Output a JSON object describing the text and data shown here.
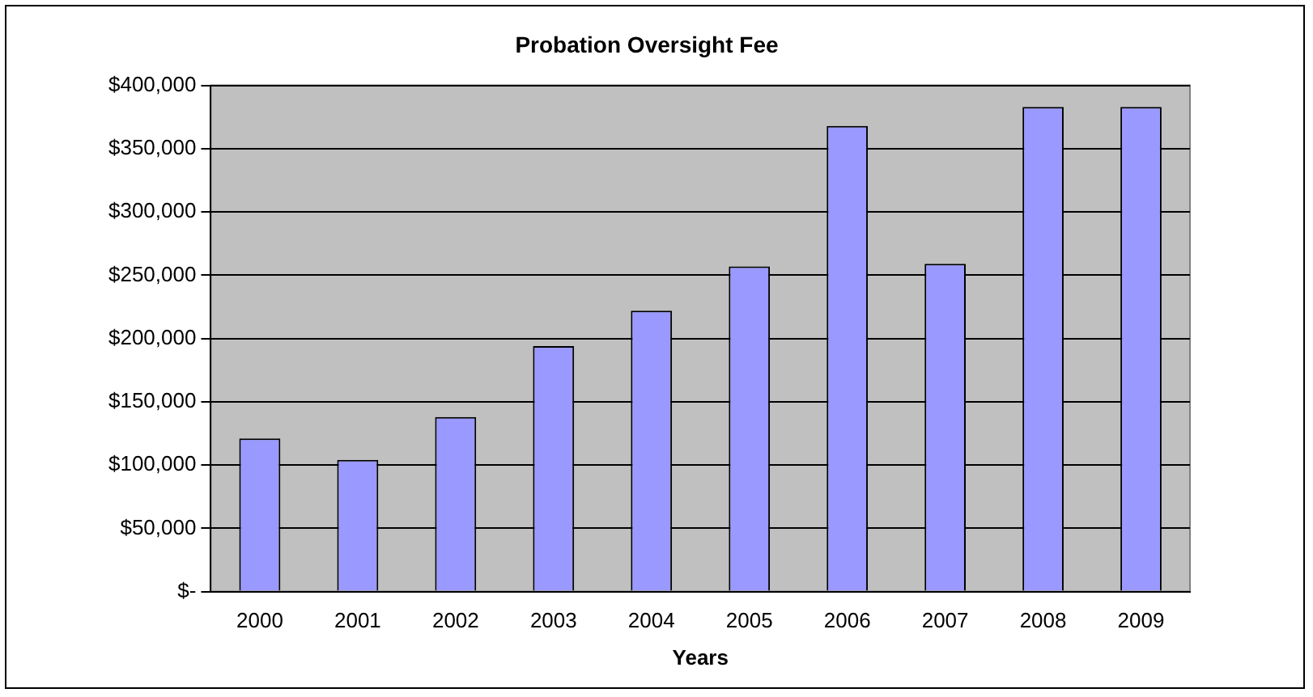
{
  "chart_data": {
    "type": "bar",
    "title": "Probation Oversight Fee",
    "xlabel": "Years",
    "categories": [
      "2000",
      "2001",
      "2002",
      "2003",
      "2004",
      "2005",
      "2006",
      "2007",
      "2008",
      "2009"
    ],
    "values": [
      121000,
      104000,
      138000,
      194000,
      222000,
      257000,
      368000,
      259000,
      383000,
      383000
    ],
    "color": "#9999ff",
    "ylim": [
      0,
      400000
    ],
    "yticks": [
      {
        "value": 0,
        "label": "$-"
      },
      {
        "value": 50000,
        "label": "$50,000"
      },
      {
        "value": 100000,
        "label": "$100,000"
      },
      {
        "value": 150000,
        "label": "$150,000"
      },
      {
        "value": 200000,
        "label": "$200,000"
      },
      {
        "value": 250000,
        "label": "$250,000"
      },
      {
        "value": 300000,
        "label": "$300,000"
      },
      {
        "value": 350000,
        "label": "$350,000"
      },
      {
        "value": 400000,
        "label": "$400,000"
      }
    ],
    "grid": "y",
    "legend": false
  }
}
